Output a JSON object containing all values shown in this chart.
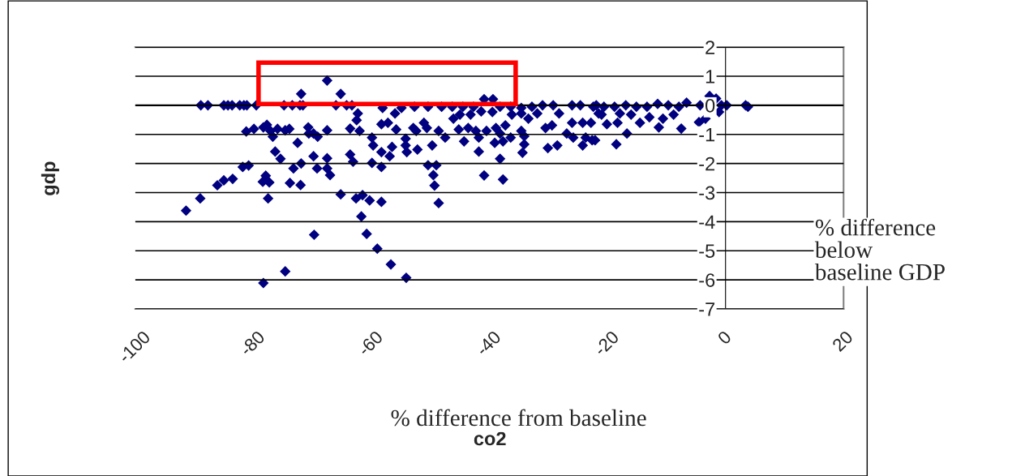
{
  "chart_data": {
    "type": "scatter",
    "xlabel": "co2",
    "ylabel": "gdp",
    "annotations": [
      "% difference from baseline",
      "% difference\nbelow\nbaseline GDP"
    ],
    "xlim": [
      -100,
      20
    ],
    "xticks": [
      -100,
      -80,
      -60,
      -40,
      -20,
      0,
      20
    ],
    "ylim": [
      -7,
      2
    ],
    "yticks": [
      -7,
      -6,
      -5,
      -4,
      -3,
      -2,
      -1,
      0,
      1,
      2
    ],
    "grid": "y",
    "marker": "diamond",
    "legend": false,
    "series": [
      {
        "color": "#000080",
        "x": [
          -88.9,
          -87.7,
          -85.0,
          -84.3,
          -83.6,
          -82.3,
          -81.6,
          -81.1,
          -79.5,
          -74.8,
          -73.4,
          -72.1,
          -71.6,
          -66.0,
          -64.2,
          -63.3,
          -67.5,
          -71.9,
          -65.2,
          -81.2,
          -79.9,
          -78.3,
          -77.7,
          -77.1,
          -76.7,
          -75.9,
          -74.6,
          -73.9,
          -70.7,
          -70.6,
          -69.8,
          -69.1,
          -67.5,
          -63.6,
          -62.3,
          -62.5,
          -62.0,
          -72.5,
          -76.3,
          -75.4,
          -69.8,
          -67.5,
          -63.6,
          -63.1,
          -81.8,
          -80.8,
          -73.2,
          -71.9,
          -69.2,
          -67.5,
          -67.0,
          -86.1,
          -85.0,
          -83.5,
          -78.4,
          -77.9,
          -77.3,
          -73.8,
          -72.0,
          -89.0,
          -91.4,
          -77.5,
          -65.2,
          -62.6,
          -61.5,
          -61.7,
          -69.7,
          -74.6,
          -78.3,
          -58.1,
          -54.9,
          -52.7,
          -50.4,
          -48.1,
          -46.3,
          -44.5,
          -42.7,
          -40.9,
          -39.4,
          -38.2,
          -36.4,
          -34.6,
          -32.8,
          -31.0,
          -29.2,
          -26.0,
          -24.6,
          -21.9,
          -56.0,
          -46.1,
          -45.0,
          -43.2,
          -41.4,
          -39.5,
          -36.2,
          -34.6,
          -33.4,
          -31.9,
          -28.2,
          -26.0,
          -24.2,
          -22.8,
          -21.5,
          -58.3,
          -57.2,
          -55.8,
          -52.9,
          -52.4,
          -51.1,
          -50.6,
          -48.6,
          -47.5,
          -45.2,
          -43.6,
          -42.3,
          -41.8,
          -40.5,
          -38.9,
          -38.2,
          -37.3,
          -36.4,
          -34.6,
          -34.1,
          -30.5,
          -29.4,
          -26.9,
          -25.8,
          -23.7,
          -22.6,
          -59.9,
          -59.7,
          -54.2,
          -54.2,
          -54.0,
          -52.2,
          -49.7,
          -44.3,
          -41.8,
          -39.1,
          -37.7,
          -34.1,
          -34.4,
          -30.1,
          -28.5,
          -24.2,
          -58.3,
          -56.9,
          -56.5,
          -59.9,
          -58.3,
          -50.4,
          -49.0,
          -49.5,
          -49.3,
          -38.2,
          -40.9,
          -37.7,
          -60.3,
          -58.3,
          -48.6,
          -60.8,
          -59.0,
          -56.7,
          -54.1,
          -22.4,
          -20.6,
          -18.8,
          -16.9,
          -15.1,
          -13.3,
          -11.5,
          -9.7,
          -7.9,
          -6.6,
          -4.3,
          -2.7,
          -1.6,
          -0.7,
          0.2,
          3.4,
          3.8,
          -21.0,
          -20.1,
          -18.3,
          -17.9,
          -16.7,
          -18.5,
          -16.0,
          -14.5,
          -12.9,
          -11.3,
          -10.6,
          -8.8,
          -7.5,
          -4.5,
          -3.4,
          -1.1,
          -22.1
        ],
        "values": [
          0,
          0,
          0,
          0,
          0,
          0,
          0,
          0,
          0,
          0,
          0,
          0,
          0,
          0,
          0,
          0,
          0.85,
          0.39,
          0.39,
          -0.9,
          -0.81,
          -0.76,
          -0.67,
          -0.88,
          -1.08,
          -0.81,
          -0.86,
          -0.81,
          -0.76,
          -0.97,
          -0.97,
          -1.08,
          -0.86,
          -0.8,
          -0.28,
          -0.51,
          -0.88,
          -1.29,
          -1.59,
          -1.84,
          -1.75,
          -1.82,
          -1.69,
          -1.94,
          -2.12,
          -2.07,
          -2.17,
          -2.0,
          -2.17,
          -2.17,
          -2.4,
          -2.75,
          -2.58,
          -2.53,
          -2.63,
          -2.42,
          -2.65,
          -2.67,
          -2.74,
          -3.2,
          -3.62,
          -3.2,
          -3.06,
          -3.2,
          -3.09,
          -3.82,
          -4.45,
          -5.71,
          -6.11,
          -0.09,
          -0.09,
          -0.05,
          -0.05,
          -0.05,
          -0.05,
          -0.05,
          -0.05,
          0.21,
          0.21,
          -0.05,
          -0.05,
          -0.09,
          -0.05,
          0,
          0,
          0,
          0,
          0,
          -0.28,
          -0.46,
          -0.32,
          -0.32,
          -0.21,
          -0.23,
          -0.32,
          -0.28,
          -0.46,
          -0.28,
          -0.28,
          -0.6,
          -0.6,
          -0.6,
          -0.28,
          -0.65,
          -0.6,
          -0.83,
          -0.78,
          -0.88,
          -0.6,
          -0.78,
          -0.88,
          -1.11,
          -0.83,
          -0.78,
          -0.88,
          -1.11,
          -0.88,
          -0.78,
          -0.97,
          -0.69,
          -1.11,
          -0.88,
          -1.06,
          -0.78,
          -0.69,
          -0.97,
          -1.11,
          -1.11,
          -1.2,
          -1.11,
          -1.38,
          -1.15,
          -1.38,
          -1.61,
          -1.52,
          -1.38,
          -1.24,
          -1.59,
          -1.29,
          -1.24,
          -1.34,
          -1.63,
          -1.47,
          -1.38,
          -1.38,
          -1.61,
          -1.75,
          -1.43,
          -1.98,
          -2.12,
          -2.06,
          -2.06,
          -2.4,
          -2.76,
          -1.84,
          -2.41,
          -2.55,
          -3.27,
          -3.32,
          -3.36,
          -4.42,
          -4.93,
          -5.47,
          -5.93,
          -0.05,
          -0.05,
          -0.05,
          0,
          -0.05,
          -0.05,
          0.05,
          0,
          -0.05,
          0.09,
          0,
          0.32,
          0.23,
          0,
          0,
          0,
          -0.05,
          -0.32,
          -0.65,
          -0.6,
          -0.28,
          -0.97,
          -1.34,
          -0.32,
          -0.6,
          -0.41,
          -0.76,
          -0.46,
          -0.32,
          -0.8,
          -0.58,
          -0.46,
          -0.23,
          -1.2
        ]
      }
    ]
  }
}
